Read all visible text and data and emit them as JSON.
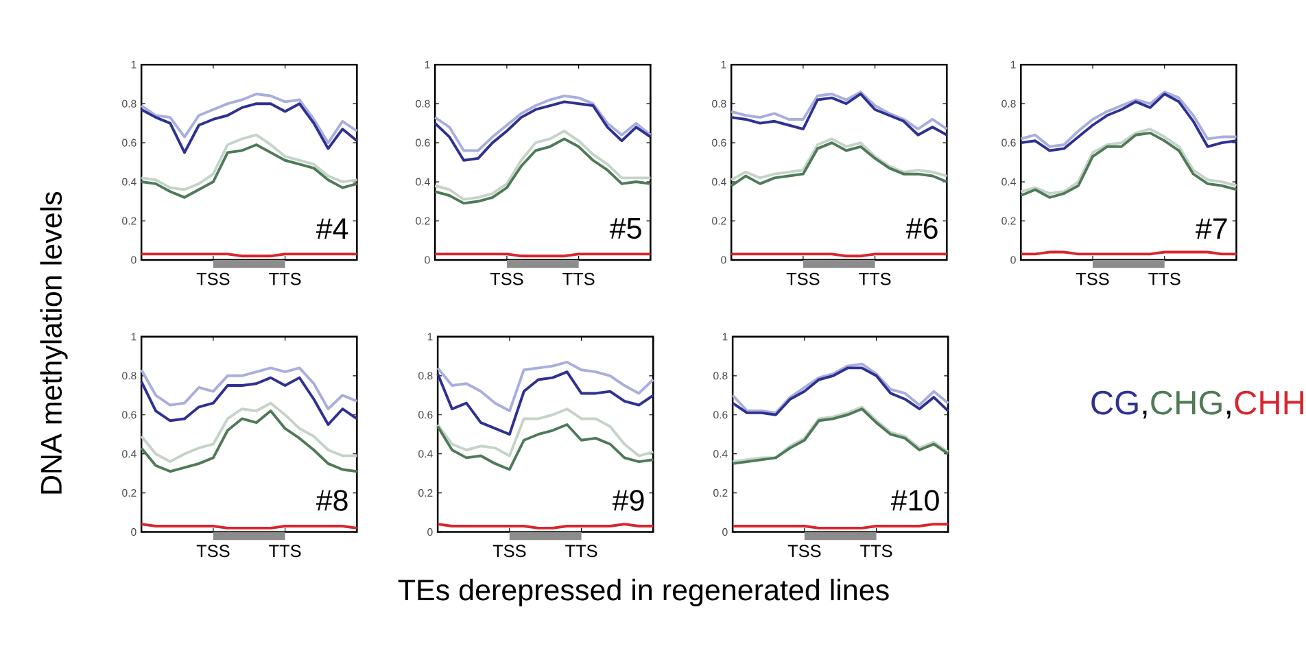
{
  "chart_data": [
    {
      "type": "line",
      "ylabel": "DNA methylation levels",
      "annotations": [
        "#4"
      ],
      "categories": [
        null,
        null,
        null,
        null,
        null,
        "TSS",
        null,
        null,
        null,
        null,
        "TTS",
        null,
        null,
        null,
        null,
        null
      ],
      "ylim": [
        0,
        1
      ],
      "yticks": [
        0,
        0.2,
        0.4,
        0.6,
        0.8,
        1
      ],
      "series": [
        {
          "color": "#a9aedc",
          "values": [
            0.79,
            0.74,
            0.73,
            0.63,
            0.74,
            0.77,
            0.8,
            0.82,
            0.85,
            0.84,
            0.81,
            0.82,
            0.72,
            0.6,
            0.71,
            0.66
          ]
        },
        {
          "color": "#2e3192",
          "values": [
            0.77,
            0.73,
            0.7,
            0.55,
            0.69,
            0.72,
            0.74,
            0.78,
            0.8,
            0.8,
            0.76,
            0.8,
            0.7,
            0.57,
            0.67,
            0.61
          ]
        },
        {
          "color": "#c5d3c8",
          "values": [
            0.42,
            0.41,
            0.37,
            0.36,
            0.39,
            0.44,
            0.59,
            0.62,
            0.64,
            0.59,
            0.53,
            0.51,
            0.49,
            0.43,
            0.4,
            0.41
          ]
        },
        {
          "color": "#4e7a58",
          "values": [
            0.4,
            0.39,
            0.35,
            0.32,
            0.36,
            0.4,
            0.55,
            0.56,
            0.59,
            0.55,
            0.51,
            0.49,
            0.47,
            0.41,
            0.37,
            0.39
          ]
        },
        {
          "color": "#d7262e",
          "values": [
            0.03,
            0.03,
            0.03,
            0.03,
            0.03,
            0.03,
            0.03,
            0.02,
            0.02,
            0.02,
            0.03,
            0.03,
            0.03,
            0.03,
            0.03,
            0.03
          ]
        }
      ]
    },
    {
      "type": "line",
      "annotations": [
        "#5"
      ],
      "categories": [
        null,
        null,
        null,
        null,
        null,
        "TSS",
        null,
        null,
        null,
        null,
        "TTS",
        null,
        null,
        null,
        null,
        null
      ],
      "ylim": [
        0,
        1
      ],
      "yticks": [
        0,
        0.2,
        0.4,
        0.6,
        0.8,
        1
      ],
      "series": [
        {
          "color": "#a9aedc",
          "values": [
            0.73,
            0.68,
            0.56,
            0.56,
            0.63,
            0.69,
            0.75,
            0.79,
            0.82,
            0.84,
            0.83,
            0.8,
            0.7,
            0.64,
            0.7,
            0.64
          ]
        },
        {
          "color": "#2e3192",
          "values": [
            0.7,
            0.63,
            0.51,
            0.52,
            0.6,
            0.66,
            0.73,
            0.77,
            0.79,
            0.81,
            0.8,
            0.79,
            0.68,
            0.61,
            0.68,
            0.63
          ]
        },
        {
          "color": "#c5d3c8",
          "values": [
            0.38,
            0.36,
            0.31,
            0.32,
            0.34,
            0.39,
            0.51,
            0.6,
            0.62,
            0.66,
            0.61,
            0.54,
            0.49,
            0.42,
            0.42,
            0.42
          ]
        },
        {
          "color": "#4e7a58",
          "values": [
            0.35,
            0.33,
            0.29,
            0.3,
            0.32,
            0.37,
            0.48,
            0.56,
            0.58,
            0.62,
            0.58,
            0.51,
            0.46,
            0.39,
            0.4,
            0.39
          ]
        },
        {
          "color": "#d7262e",
          "values": [
            0.03,
            0.03,
            0.03,
            0.03,
            0.03,
            0.03,
            0.02,
            0.02,
            0.02,
            0.02,
            0.03,
            0.03,
            0.03,
            0.03,
            0.03,
            0.03
          ]
        }
      ]
    },
    {
      "type": "line",
      "annotations": [
        "#6"
      ],
      "categories": [
        null,
        null,
        null,
        null,
        null,
        "TSS",
        null,
        null,
        null,
        null,
        "TTS",
        null,
        null,
        null,
        null,
        null
      ],
      "ylim": [
        0,
        1
      ],
      "yticks": [
        0,
        0.2,
        0.4,
        0.6,
        0.8,
        1
      ],
      "series": [
        {
          "color": "#a9aedc",
          "values": [
            0.76,
            0.74,
            0.73,
            0.75,
            0.72,
            0.72,
            0.84,
            0.85,
            0.82,
            0.86,
            0.79,
            0.75,
            0.72,
            0.67,
            0.72,
            0.67
          ]
        },
        {
          "color": "#2e3192",
          "values": [
            0.73,
            0.72,
            0.7,
            0.71,
            0.69,
            0.67,
            0.82,
            0.83,
            0.8,
            0.85,
            0.77,
            0.74,
            0.71,
            0.64,
            0.68,
            0.64
          ]
        },
        {
          "color": "#c5d3c8",
          "values": [
            0.41,
            0.45,
            0.42,
            0.44,
            0.45,
            0.46,
            0.59,
            0.62,
            0.58,
            0.6,
            0.53,
            0.48,
            0.45,
            0.46,
            0.45,
            0.43
          ]
        },
        {
          "color": "#4e7a58",
          "values": [
            0.38,
            0.43,
            0.39,
            0.42,
            0.43,
            0.44,
            0.57,
            0.6,
            0.56,
            0.58,
            0.52,
            0.47,
            0.44,
            0.44,
            0.43,
            0.4
          ]
        },
        {
          "color": "#d7262e",
          "values": [
            0.03,
            0.03,
            0.03,
            0.03,
            0.03,
            0.03,
            0.03,
            0.03,
            0.02,
            0.02,
            0.03,
            0.03,
            0.03,
            0.03,
            0.03,
            0.03
          ]
        }
      ]
    },
    {
      "type": "line",
      "annotations": [
        "#7"
      ],
      "categories": [
        null,
        null,
        null,
        null,
        null,
        "TSS",
        null,
        null,
        null,
        null,
        "TTS",
        null,
        null,
        null,
        null,
        null
      ],
      "ylim": [
        0,
        1
      ],
      "yticks": [
        0,
        0.2,
        0.4,
        0.6,
        0.8,
        1
      ],
      "series": [
        {
          "color": "#a9aedc",
          "values": [
            0.62,
            0.64,
            0.58,
            0.59,
            0.66,
            0.72,
            0.76,
            0.79,
            0.82,
            0.8,
            0.86,
            0.83,
            0.74,
            0.62,
            0.63,
            0.63
          ]
        },
        {
          "color": "#2e3192",
          "values": [
            0.6,
            0.61,
            0.56,
            0.57,
            0.63,
            0.69,
            0.74,
            0.77,
            0.81,
            0.78,
            0.85,
            0.81,
            0.71,
            0.58,
            0.6,
            0.61
          ]
        },
        {
          "color": "#c5d3c8",
          "values": [
            0.35,
            0.37,
            0.34,
            0.35,
            0.4,
            0.55,
            0.59,
            0.6,
            0.65,
            0.67,
            0.63,
            0.58,
            0.46,
            0.41,
            0.4,
            0.38
          ]
        },
        {
          "color": "#4e7a58",
          "values": [
            0.33,
            0.36,
            0.32,
            0.34,
            0.38,
            0.53,
            0.58,
            0.58,
            0.64,
            0.65,
            0.61,
            0.56,
            0.44,
            0.39,
            0.38,
            0.36
          ]
        },
        {
          "color": "#d7262e",
          "values": [
            0.03,
            0.03,
            0.04,
            0.04,
            0.03,
            0.03,
            0.03,
            0.03,
            0.03,
            0.03,
            0.04,
            0.04,
            0.04,
            0.04,
            0.03,
            0.03
          ]
        }
      ]
    },
    {
      "type": "line",
      "annotations": [
        "#8"
      ],
      "categories": [
        null,
        null,
        null,
        null,
        null,
        "TSS",
        null,
        null,
        null,
        null,
        "TTS",
        null,
        null,
        null,
        null,
        null
      ],
      "ylim": [
        0,
        1
      ],
      "yticks": [
        0,
        0.2,
        0.4,
        0.6,
        0.8,
        1
      ],
      "series": [
        {
          "color": "#a9aedc",
          "values": [
            0.83,
            0.7,
            0.65,
            0.66,
            0.74,
            0.72,
            0.8,
            0.8,
            0.82,
            0.84,
            0.82,
            0.84,
            0.76,
            0.63,
            0.7,
            0.67
          ]
        },
        {
          "color": "#2e3192",
          "values": [
            0.77,
            0.62,
            0.57,
            0.58,
            0.64,
            0.66,
            0.75,
            0.75,
            0.76,
            0.79,
            0.75,
            0.79,
            0.68,
            0.55,
            0.63,
            0.58
          ]
        },
        {
          "color": "#c5d3c8",
          "values": [
            0.49,
            0.4,
            0.36,
            0.4,
            0.43,
            0.45,
            0.58,
            0.63,
            0.62,
            0.66,
            0.6,
            0.53,
            0.49,
            0.42,
            0.39,
            0.39
          ]
        },
        {
          "color": "#4e7a58",
          "values": [
            0.43,
            0.34,
            0.31,
            0.33,
            0.35,
            0.38,
            0.52,
            0.58,
            0.56,
            0.62,
            0.53,
            0.48,
            0.42,
            0.35,
            0.32,
            0.31
          ]
        },
        {
          "color": "#d7262e",
          "values": [
            0.04,
            0.03,
            0.03,
            0.03,
            0.03,
            0.03,
            0.02,
            0.02,
            0.02,
            0.02,
            0.03,
            0.03,
            0.03,
            0.03,
            0.03,
            0.02
          ]
        }
      ]
    },
    {
      "type": "line",
      "annotations": [
        "#9"
      ],
      "xlabel": "TEs derepressed in regenerated lines",
      "categories": [
        null,
        null,
        null,
        null,
        null,
        "TSS",
        null,
        null,
        null,
        null,
        "TTS",
        null,
        null,
        null,
        null,
        null
      ],
      "ylim": [
        0,
        1
      ],
      "yticks": [
        0,
        0.2,
        0.4,
        0.6,
        0.8,
        1
      ],
      "series": [
        {
          "color": "#a9aedc",
          "values": [
            0.84,
            0.75,
            0.76,
            0.72,
            0.66,
            0.62,
            0.83,
            0.84,
            0.85,
            0.87,
            0.83,
            0.82,
            0.8,
            0.75,
            0.71,
            0.78
          ]
        },
        {
          "color": "#2e3192",
          "values": [
            0.81,
            0.63,
            0.66,
            0.56,
            0.53,
            0.5,
            0.72,
            0.78,
            0.79,
            0.82,
            0.71,
            0.71,
            0.72,
            0.67,
            0.65,
            0.7
          ]
        },
        {
          "color": "#c5d3c8",
          "values": [
            0.55,
            0.45,
            0.42,
            0.44,
            0.43,
            0.39,
            0.58,
            0.58,
            0.6,
            0.63,
            0.58,
            0.58,
            0.54,
            0.45,
            0.39,
            0.41
          ]
        },
        {
          "color": "#4e7a58",
          "values": [
            0.54,
            0.42,
            0.38,
            0.39,
            0.35,
            0.32,
            0.47,
            0.5,
            0.52,
            0.55,
            0.47,
            0.48,
            0.45,
            0.38,
            0.36,
            0.37
          ]
        },
        {
          "color": "#d7262e",
          "values": [
            0.04,
            0.03,
            0.03,
            0.03,
            0.03,
            0.03,
            0.03,
            0.02,
            0.02,
            0.03,
            0.03,
            0.03,
            0.03,
            0.04,
            0.03,
            0.03
          ]
        }
      ]
    },
    {
      "type": "line",
      "annotations": [
        "#10",
        ",",
        ","
      ],
      "legend": "right",
      "categories": [
        null,
        null,
        null,
        null,
        null,
        "TSS",
        null,
        null,
        null,
        null,
        "TTS",
        null,
        null,
        null,
        null,
        null
      ],
      "ylim": [
        0,
        1
      ],
      "yticks": [
        0,
        0.2,
        0.4,
        0.6,
        0.8,
        1
      ],
      "series": [
        {
          "color": "#a9aedc",
          "values": [
            0.7,
            0.62,
            0.62,
            0.61,
            0.69,
            0.74,
            0.79,
            0.81,
            0.85,
            0.86,
            0.81,
            0.73,
            0.71,
            0.65,
            0.72,
            0.66
          ]
        },
        {
          "name": "CG",
          "color": "#2e3192",
          "values": [
            0.66,
            0.61,
            0.61,
            0.6,
            0.68,
            0.72,
            0.78,
            0.8,
            0.84,
            0.84,
            0.8,
            0.71,
            0.68,
            0.63,
            0.69,
            0.62
          ]
        },
        {
          "color": "#c5d3c8",
          "values": [
            0.36,
            0.37,
            0.38,
            0.38,
            0.44,
            0.48,
            0.58,
            0.59,
            0.61,
            0.64,
            0.57,
            0.51,
            0.49,
            0.43,
            0.46,
            0.41
          ]
        },
        {
          "name": "CHG",
          "color": "#4e7a58",
          "values": [
            0.35,
            0.36,
            0.37,
            0.38,
            0.43,
            0.47,
            0.57,
            0.58,
            0.6,
            0.63,
            0.56,
            0.5,
            0.48,
            0.42,
            0.45,
            0.4
          ]
        },
        {
          "name": "CHH",
          "color": "#d7262e",
          "values": [
            0.03,
            0.03,
            0.03,
            0.03,
            0.03,
            0.03,
            0.02,
            0.02,
            0.02,
            0.02,
            0.03,
            0.03,
            0.03,
            0.03,
            0.04,
            0.04
          ]
        }
      ]
    }
  ]
}
